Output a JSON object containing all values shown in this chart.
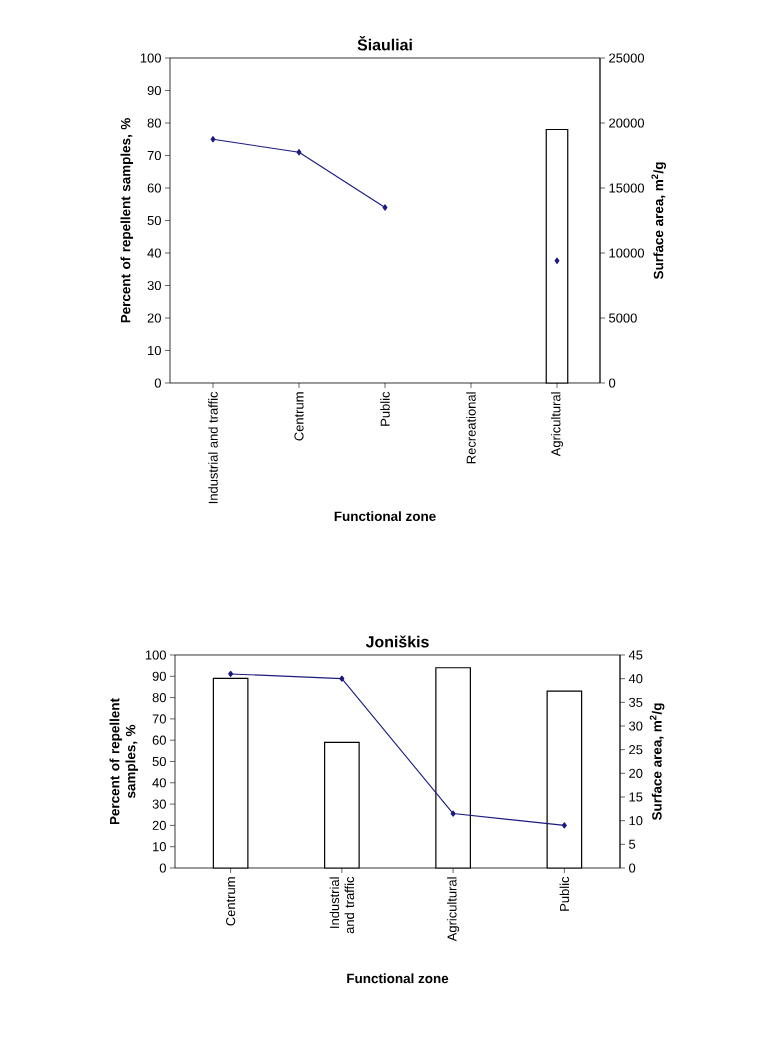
{
  "chart_data": [
    {
      "type": "bar",
      "title": "Šiauliai",
      "xlabel": "Functional zone",
      "ylabel": "Percent of repellent samples, %",
      "y2label": "Surface area, m$^{2}$/g",
      "categories": [
        "Industrial and traffic",
        "Centrum",
        "Public",
        "Recreational",
        "Agricultural"
      ],
      "series": [
        {
          "color": "#ffffff",
          "values": [
            null,
            null,
            null,
            null,
            78
          ]
        },
        {
          "type": "line",
          "axis": "y2",
          "color": "#1a1a80",
          "marker": "diamond",
          "values": [
            18750,
            17750,
            13500,
            null,
            9400
          ]
        }
      ],
      "ylim": [
        0,
        100
      ],
      "yticks": [
        0,
        10,
        20,
        30,
        40,
        50,
        60,
        70,
        80,
        90,
        100
      ],
      "y2lim": [
        0,
        25000
      ],
      "y2ticks": [
        0,
        5000,
        10000,
        15000,
        20000,
        25000
      ]
    },
    {
      "type": "bar",
      "title": "Joniškis",
      "xlabel": "Functional zone",
      "ylabel": "Percent of repellent samples, %",
      "y2label": "Surface area, m$^{2}$/g",
      "categories": [
        "Centrum",
        "Industrial and traffic",
        "Agricultural",
        "Public"
      ],
      "series": [
        {
          "color": "#ffffff",
          "values": [
            89,
            59,
            94,
            83
          ]
        },
        {
          "type": "line",
          "axis": "y2",
          "color": "#1a1a80",
          "marker": "diamond",
          "values": [
            41,
            40,
            11.5,
            9
          ]
        }
      ],
      "ylim": [
        0,
        100
      ],
      "yticks": [
        0,
        10,
        20,
        30,
        40,
        50,
        60,
        70,
        80,
        90,
        100
      ],
      "y2lim": [
        0,
        45
      ],
      "y2ticks": [
        0,
        5,
        10,
        15,
        20,
        25,
        30,
        35,
        40,
        45
      ]
    }
  ]
}
